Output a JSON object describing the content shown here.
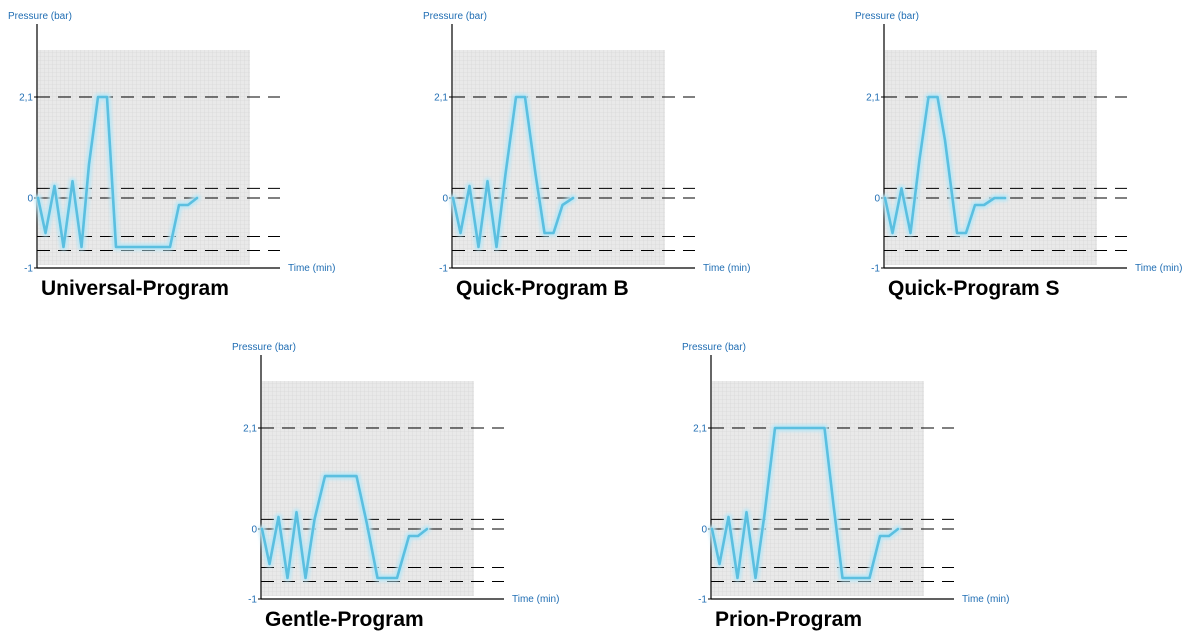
{
  "colors": {
    "axis_text": "#1f6db3",
    "line": "#5bbfe0",
    "line_glow": "#b9e6f5",
    "grid_bg": "#e9e9e9",
    "grid_line": "#d2d2d2",
    "axis": "#000000",
    "dash": "#000000"
  },
  "chart_data": [
    {
      "type": "line",
      "title": "Universal-Program",
      "ylabel": "Pressure (bar)",
      "xlabel": "Time (min)",
      "yticks": [
        "2,1",
        "0",
        "-1"
      ],
      "ylim": [
        -1,
        2.9
      ],
      "reference_lines": [
        2.1,
        0.2,
        0,
        -0.55,
        -0.75
      ],
      "grid": true,
      "series": [
        {
          "x": [
            0,
            0.5,
            1.1,
            1.7,
            2.3,
            2.9,
            3.4,
            4.0,
            4.6,
            5.2,
            6.4,
            7.0,
            8.8,
            9.4,
            10.0,
            10.6
          ],
          "y": [
            0,
            -0.5,
            0.25,
            -0.7,
            0.35,
            -0.7,
            0.7,
            2.1,
            2.1,
            -0.7,
            -0.7,
            -0.7,
            -0.7,
            -0.1,
            -0.1,
            0
          ]
        }
      ]
    },
    {
      "type": "line",
      "title": "Quick-Program B",
      "ylabel": "Pressure (bar)",
      "xlabel": "Time (min)",
      "yticks": [
        "2,1",
        "0",
        "-1"
      ],
      "ylim": [
        -1,
        2.9
      ],
      "reference_lines": [
        2.1,
        0.2,
        0,
        -0.55,
        -0.75
      ],
      "grid": true,
      "series": [
        {
          "x": [
            0,
            0.5,
            1.1,
            1.7,
            2.3,
            2.9,
            3.5,
            4.2,
            4.8,
            5.5,
            6.1,
            6.7,
            7.3,
            8.0
          ],
          "y": [
            0,
            -0.5,
            0.25,
            -0.7,
            0.35,
            -0.7,
            0.5,
            2.1,
            2.1,
            0.5,
            -0.5,
            -0.5,
            -0.1,
            0
          ]
        }
      ]
    },
    {
      "type": "line",
      "title": "Quick-Program S",
      "ylabel": "Pressure (bar)",
      "xlabel": "Time (min)",
      "yticks": [
        "2,1",
        "0",
        "-1"
      ],
      "ylim": [
        -1,
        2.9
      ],
      "reference_lines": [
        2.1,
        0.2,
        0,
        -0.55,
        -0.75
      ],
      "grid": true,
      "series": [
        {
          "x": [
            0,
            0.5,
            1.1,
            1.7,
            2.3,
            2.9,
            3.5,
            4.0,
            4.8,
            5.4,
            6.0,
            6.6,
            7.3,
            8.0
          ],
          "y": [
            0,
            -0.5,
            0.2,
            -0.5,
            0.8,
            2.1,
            2.1,
            1.2,
            -0.5,
            -0.5,
            -0.1,
            -0.1,
            0,
            0
          ]
        }
      ]
    },
    {
      "type": "line",
      "title": "Gentle-Program",
      "ylabel": "Pressure (bar)",
      "xlabel": "Time (min)",
      "yticks": [
        "2,1",
        "0",
        "-1"
      ],
      "ylim": [
        -1,
        2.9
      ],
      "reference_lines": [
        2.1,
        0.2,
        0,
        -0.55,
        -0.75
      ],
      "grid": true,
      "series": [
        {
          "x": [
            0,
            0.5,
            1.1,
            1.7,
            2.3,
            2.9,
            3.5,
            4.2,
            5.5,
            6.3,
            7.0,
            7.7,
            9.0,
            9.8,
            10.4,
            11.0
          ],
          "y": [
            0,
            -0.5,
            0.25,
            -0.7,
            0.35,
            -0.7,
            0.2,
            1.1,
            1.1,
            1.1,
            0.1,
            -0.7,
            -0.7,
            -0.1,
            -0.1,
            0
          ]
        }
      ]
    },
    {
      "type": "line",
      "title": "Prion-Program",
      "ylabel": "Pressure (bar)",
      "xlabel": "Time (min)",
      "yticks": [
        "2,1",
        "0",
        "-1"
      ],
      "ylim": [
        -1,
        2.9
      ],
      "reference_lines": [
        2.1,
        0.2,
        0,
        -0.55,
        -0.75
      ],
      "grid": true,
      "series": [
        {
          "x": [
            0,
            0.5,
            1.1,
            1.7,
            2.3,
            2.9,
            3.5,
            4.2,
            6.8,
            7.5,
            8.1,
            8.7,
            10.5,
            11.2,
            11.8,
            12.4
          ],
          "y": [
            0,
            -0.5,
            0.25,
            -0.7,
            0.35,
            -0.7,
            0.3,
            2.1,
            2.1,
            2.1,
            0.5,
            -0.7,
            -0.7,
            -0.1,
            -0.1,
            0
          ]
        }
      ]
    }
  ]
}
